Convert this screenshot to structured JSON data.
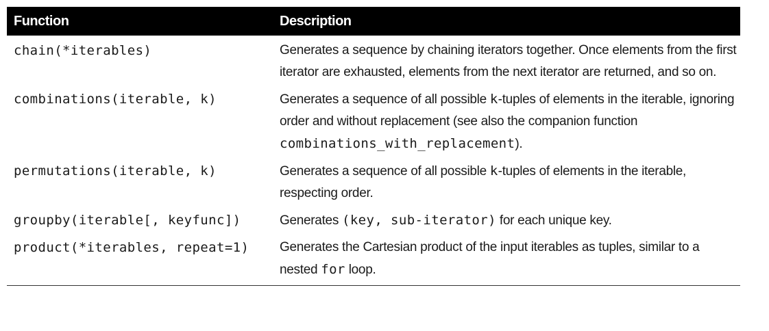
{
  "table": {
    "headers": {
      "function": "Function",
      "description": "Description"
    },
    "rows": [
      {
        "function": "chain(*iterables)",
        "description": {
          "text": "Generates a sequence by chaining iterators together. Once elements from the first iterator are exhausted, elements from the next iterator are returned, and so on."
        }
      },
      {
        "function": "combinations(iterable, k)",
        "description": {
          "pre": "Generates a sequence of all possible ",
          "code1": "k",
          "mid": "-tuples of elements in the iterable, ignoring order and without replacement (see also the companion function ",
          "code2": "combinations_with_replacement",
          "post": ")."
        }
      },
      {
        "function": "permutations(iterable, k)",
        "description": {
          "pre": "Generates a sequence of all possible ",
          "code1": "k",
          "post": "-tuples of elements in the iterable, respecting order."
        }
      },
      {
        "function": "groupby(iterable[, keyfunc])",
        "description": {
          "pre": "Generates ",
          "code1": "(key, sub-iterator)",
          "post": " for each unique key."
        }
      },
      {
        "function": "product(*iterables, repeat=1)",
        "description": {
          "pre": "Generates the Cartesian product of the input iterables as tuples, similar to a nested ",
          "code1": "for",
          "post": " loop."
        }
      }
    ]
  }
}
